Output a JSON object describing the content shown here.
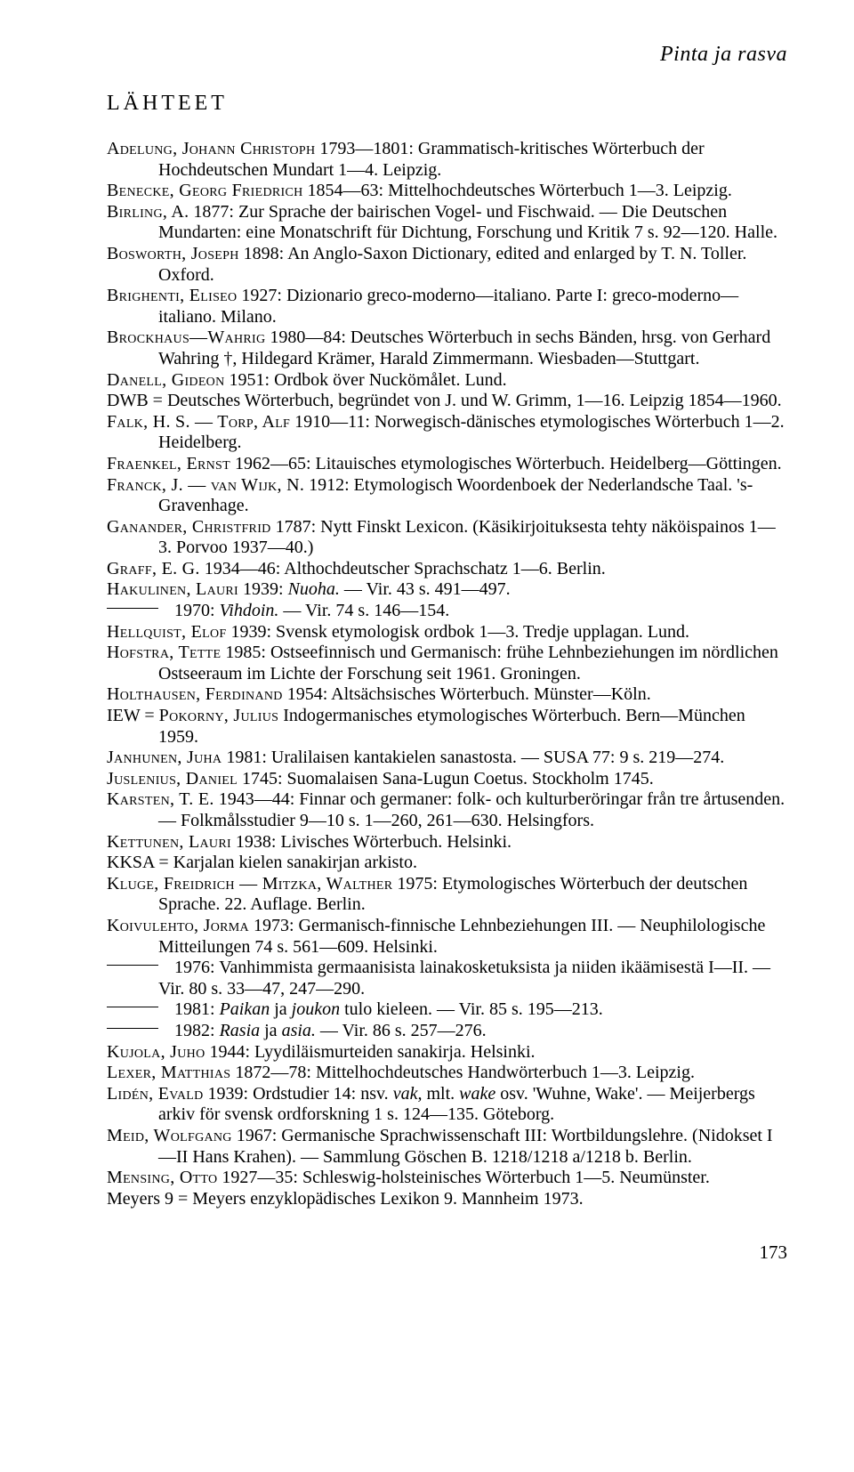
{
  "running_head": "Pinta ja rasva",
  "section_heading": "LÄHTEET",
  "page_number": "173",
  "entries": [
    {
      "html": "<span class='sc'>Adelung, Johann Christoph</span> 1793—1801: Grammatisch-kritisches Wörterbuch der Hochdeutschen Mundart 1—4. Leipzig."
    },
    {
      "html": "<span class='sc'>Benecke, Georg Friedrich</span> 1854—63: Mittelhochdeutsches Wörterbuch 1—3. Leipzig."
    },
    {
      "html": "<span class='sc'>Birling, A.</span> 1877: Zur Sprache der bairischen Vogel- und Fischwaid. — Die Deutschen Mundarten: eine Monatschrift für Dichtung, Forschung und Kritik 7 s. 92—120. Halle."
    },
    {
      "html": "<span class='sc'>Bosworth, Joseph</span> 1898: An Anglo-Saxon Dictionary, edited and enlarged by T. N. Toller. Oxford."
    },
    {
      "html": "<span class='sc'>Brighenti, Eliseo</span> 1927: Dizionario greco-moderno—italiano. Parte I: greco-moderno—italiano. Milano."
    },
    {
      "html": "<span class='sc'>Brockhaus—Wahrig</span> 1980—84: Deutsches Wörterbuch in sechs Bänden, hrsg. von Gerhard Wahring †, Hildegard Krämer, Harald Zimmermann. Wiesbaden—Stuttgart."
    },
    {
      "html": "<span class='sc'>Danell, Gideon</span> 1951: Ordbok över Nuckömålet. Lund."
    },
    {
      "html": "DWB = Deutsches Wörterbuch, begründet von J. und W. Grimm, 1—16. Leipzig 1854—1960."
    },
    {
      "html": "<span class='sc'>Falk, H. S. — Torp, Alf</span> 1910—11: Norwegisch-dänisches etymologisches Wörterbuch 1—2. Heidelberg."
    },
    {
      "html": "<span class='sc'>Fraenkel, Ernst</span> 1962—65: Litauisches etymologisches Wörterbuch. Heidelberg—Göttingen."
    },
    {
      "html": "<span class='sc'>Franck, J. — van Wijk, N.</span>  1912: Etymologisch Woordenboek der Nederlandsche Taal. 's-Gravenhage."
    },
    {
      "html": "<span class='sc'>Ganander, Christfrid</span> 1787: Nytt Finskt Lexicon. (Käsikirjoituksesta tehty näköispainos 1—3. Porvoo 1937—40.)"
    },
    {
      "html": "<span class='sc'>Graff, E. G.</span> 1934—46: Althochdeutscher Sprachschatz 1—6. Berlin."
    },
    {
      "html": "<span class='sc'>Hakulinen, Lauri</span> 1939: <span class='it'>Nuoha.</span> — Vir. 43 s. 491—497."
    },
    {
      "dash": true,
      "html": "1970: <span class='it'>Vihdoin.</span> — Vir. 74 s. 146—154."
    },
    {
      "html": "<span class='sc'>Hellquist, Elof</span> 1939: Svensk etymologisk ordbok 1—3. Tredje upplagan. Lund."
    },
    {
      "html": "<span class='sc'>Hofstra, Tette</span> 1985: Ostseefinnisch und Germanisch: frühe Lehnbeziehungen im nördlichen Ostseeraum im Lichte der Forschung seit 1961. Groningen."
    },
    {
      "html": "<span class='sc'>Holthausen, Ferdinand</span> 1954: Altsächsisches Wörterbuch. Münster—Köln."
    },
    {
      "html": "IEW = <span class='sc'>Pokorny, Julius</span> Indogermanisches etymologisches Wörterbuch. Bern—München 1959."
    },
    {
      "html": "<span class='sc'>Janhunen, Juha</span> 1981: Uralilaisen kantakielen sanastosta. — SUSA 77: 9 s. 219—274."
    },
    {
      "html": "<span class='sc'>Juslenius, Daniel</span> 1745: Suomalaisen Sana-Lugun Coetus. Stockholm 1745."
    },
    {
      "html": "<span class='sc'>Karsten, T. E.</span> 1943—44: Finnar och germaner: folk- och kulturberöringar från tre årtusenden. — Folkmålsstudier 9—10 s. 1—260, 261—630. Helsingfors."
    },
    {
      "html": "<span class='sc'>Kettunen, Lauri</span> 1938: Livisches Wörterbuch. Helsinki."
    },
    {
      "html": "KKSA = Karjalan kielen sanakirjan arkisto."
    },
    {
      "html": "<span class='sc'>Kluge, Freidrich — Mitzka, Walther</span> 1975: Etymologisches Wörterbuch der deutschen Sprache. 22. Auflage. Berlin."
    },
    {
      "html": "<span class='sc'>Koivulehto, Jorma</span> 1973: Germanisch-finnische Lehnbeziehungen III. — Neuphilologische Mitteilungen 74 s. 561—609. Helsinki."
    },
    {
      "dash": true,
      "html": "1976: Vanhimmista germaanisista lainakosketuksista ja niiden ikäämisestä I—II. — Vir. 80 s. 33—47, 247—290."
    },
    {
      "dash": true,
      "html": "1981: <span class='it'>Paikan</span> ja <span class='it'>joukon</span> tulo kieleen. — Vir. 85 s. 195—213."
    },
    {
      "dash": true,
      "html": "1982: <span class='it'>Rasia</span> ja <span class='it'>asia.</span> — Vir. 86 s. 257—276."
    },
    {
      "html": "<span class='sc'>Kujola, Juho</span> 1944: Lyydiläismurteiden sanakirja. Helsinki."
    },
    {
      "html": "<span class='sc'>Lexer, Matthias</span> 1872—78: Mittelhochdeutsches Handwörterbuch 1—3. Leipzig."
    },
    {
      "html": "<span class='sc'>Lidén, Evald</span> 1939: Ordstudier 14: nsv. <span class='it'>vak,</span> mlt. <span class='it'>wake</span> osv. 'Wuhne, Wake'. — Meijerbergs arkiv för svensk ordforskning 1 s. 124—135. Göteborg."
    },
    {
      "html": "<span class='sc'>Meid, Wolfgang</span> 1967: Germanische Sprachwissenschaft III: Wortbildungslehre. (Nidokset I—II Hans Krahen). — Sammlung Göschen B. 1218/1218 a/1218 b. Berlin."
    },
    {
      "html": "<span class='sc'>Mensing, Otto</span> 1927—35: Schleswig-holsteinisches Wörterbuch 1—5. Neumünster."
    },
    {
      "html": "Meyers 9 = Meyers enzyklopädisches Lexikon 9. Mannheim 1973."
    }
  ]
}
